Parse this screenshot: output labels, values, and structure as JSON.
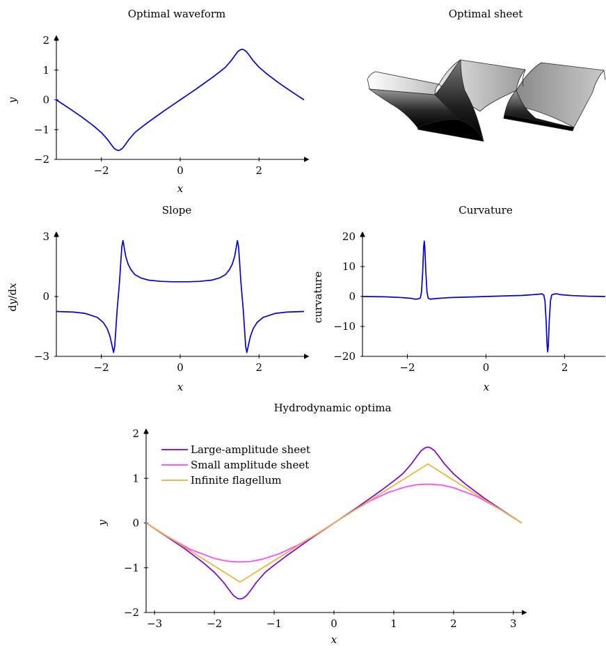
{
  "figure": {
    "sheet_title": "Optimal sheet"
  },
  "chart_data": [
    {
      "id": "waveform",
      "type": "line",
      "title": "Optimal waveform",
      "xlabel": "x",
      "ylabel": "y",
      "xlim": [
        -3.14159,
        3.14159
      ],
      "ylim": [
        -2,
        2
      ],
      "xticks": [
        -2,
        0,
        2
      ],
      "xtick_labels": [
        "−2",
        "0",
        "2"
      ],
      "yticks": [
        -2,
        -1,
        0,
        1,
        2
      ],
      "ytick_labels": [
        "−2",
        "−1",
        "0",
        "1",
        "2"
      ],
      "series": [
        {
          "color": "#0000dd",
          "x": [
            -3.14159,
            -2.8,
            -2.5,
            -2.2,
            -2.0,
            -1.85,
            -1.75,
            -1.68,
            -1.62,
            -1.57,
            -1.52,
            -1.46,
            -1.39,
            -1.3,
            -1.15,
            -1.0,
            -0.8,
            -0.6,
            -0.4,
            -0.2,
            0.0,
            0.2,
            0.4,
            0.6,
            0.8,
            1.0,
            1.15,
            1.3,
            1.39,
            1.46,
            1.52,
            1.57,
            1.62,
            1.68,
            1.75,
            1.85,
            2.0,
            2.2,
            2.5,
            2.8,
            3.14159
          ],
          "y": [
            0.0,
            -0.3,
            -0.57,
            -0.87,
            -1.1,
            -1.32,
            -1.5,
            -1.62,
            -1.68,
            -1.7,
            -1.68,
            -1.62,
            -1.5,
            -1.33,
            -1.1,
            -0.94,
            -0.74,
            -0.55,
            -0.36,
            -0.18,
            0.0,
            0.18,
            0.36,
            0.55,
            0.74,
            0.94,
            1.1,
            1.33,
            1.5,
            1.62,
            1.68,
            1.7,
            1.68,
            1.62,
            1.5,
            1.32,
            1.1,
            0.87,
            0.57,
            0.3,
            0.0
          ]
        }
      ]
    },
    {
      "id": "slope",
      "type": "line",
      "title": "Slope",
      "xlabel": "x",
      "ylabel": "dy/dx",
      "xlim": [
        -3.14159,
        3.14159
      ],
      "ylim": [
        -3,
        3
      ],
      "xticks": [
        -2,
        0,
        2
      ],
      "xtick_labels": [
        "−2",
        "0",
        "2"
      ],
      "yticks": [
        -3,
        0,
        3
      ],
      "ytick_labels": [
        "−3",
        "0",
        "3"
      ],
      "series": [
        {
          "color": "#0000dd",
          "x": [
            -3.14159,
            -2.7,
            -2.4,
            -2.1,
            -1.95,
            -1.85,
            -1.78,
            -1.73,
            -1.69,
            -1.66,
            -1.63,
            -1.6,
            -1.57,
            -1.54,
            -1.51,
            -1.48,
            -1.45,
            -1.42,
            -1.38,
            -1.32,
            -1.25,
            -1.15,
            -1.0,
            -0.8,
            -0.5,
            -0.2,
            0.0,
            0.2,
            0.5,
            0.8,
            1.0,
            1.15,
            1.25,
            1.32,
            1.38,
            1.42,
            1.45,
            1.48,
            1.51,
            1.54,
            1.57,
            1.6,
            1.63,
            1.66,
            1.69,
            1.73,
            1.78,
            1.85,
            1.95,
            2.1,
            2.4,
            2.7,
            3.14159
          ],
          "y": [
            -0.75,
            -0.78,
            -0.85,
            -1.05,
            -1.3,
            -1.62,
            -2.0,
            -2.45,
            -2.8,
            -2.5,
            -1.6,
            -0.7,
            0.0,
            0.7,
            1.6,
            2.5,
            2.8,
            2.45,
            2.0,
            1.62,
            1.35,
            1.1,
            0.93,
            0.82,
            0.76,
            0.74,
            0.74,
            0.74,
            0.76,
            0.82,
            0.93,
            1.1,
            1.35,
            1.62,
            2.0,
            2.45,
            2.8,
            2.5,
            1.6,
            0.7,
            0.0,
            -0.7,
            -1.6,
            -2.5,
            -2.8,
            -2.45,
            -2.0,
            -1.62,
            -1.3,
            -1.05,
            -0.85,
            -0.78,
            -0.75
          ]
        }
      ]
    },
    {
      "id": "curvature",
      "type": "line",
      "title": "Curvature",
      "xlabel": "x",
      "ylabel": "curvature",
      "xlim": [
        -3.14159,
        3.14159
      ],
      "ylim": [
        -20,
        20
      ],
      "xticks": [
        -2,
        0,
        2
      ],
      "xtick_labels": [
        "−2",
        "0",
        "2"
      ],
      "yticks": [
        -20,
        -10,
        0,
        10,
        20
      ],
      "ytick_labels": [
        "−20",
        "−10",
        "0",
        "10",
        "20"
      ],
      "series": [
        {
          "color": "#0000dd",
          "x": [
            -3.14159,
            -2.6,
            -2.2,
            -1.9,
            -1.8,
            -1.72,
            -1.67,
            -1.64,
            -1.61,
            -1.585,
            -1.57,
            -1.555,
            -1.53,
            -1.5,
            -1.47,
            -1.42,
            -1.35,
            -1.2,
            -0.9,
            -0.5,
            0.0,
            0.5,
            0.9,
            1.2,
            1.35,
            1.42,
            1.47,
            1.5,
            1.53,
            1.555,
            1.57,
            1.585,
            1.61,
            1.64,
            1.67,
            1.72,
            1.8,
            1.9,
            2.2,
            2.6,
            3.14159
          ],
          "y": [
            0.0,
            -0.1,
            -0.3,
            -0.6,
            -0.9,
            -0.8,
            -0.5,
            1.5,
            8.0,
            16.5,
            18.5,
            16.5,
            8.0,
            1.5,
            -0.5,
            -0.9,
            -0.8,
            -0.6,
            -0.35,
            -0.2,
            0.0,
            0.2,
            0.35,
            0.6,
            0.8,
            0.9,
            0.5,
            -1.5,
            -8.0,
            -16.5,
            -18.5,
            -16.5,
            -8.0,
            -1.5,
            0.5,
            0.8,
            0.9,
            0.6,
            0.3,
            0.1,
            0.0
          ]
        }
      ]
    },
    {
      "id": "optima",
      "type": "line",
      "title": "Hydrodynamic optima",
      "xlabel": "x",
      "ylabel": "y",
      "xlim": [
        -3.14159,
        3.14159
      ],
      "ylim": [
        -2,
        2
      ],
      "xticks": [
        -3,
        -2,
        -1,
        0,
        1,
        2,
        3
      ],
      "xtick_labels": [
        "−3",
        "−2",
        "−1",
        "0",
        "1",
        "2",
        "3"
      ],
      "yticks": [
        -2,
        -1,
        0,
        1,
        2
      ],
      "ytick_labels": [
        "−2",
        "−1",
        "0",
        "1",
        "2"
      ],
      "legend": "top-left",
      "series": [
        {
          "name": "Large-amplitude sheet",
          "color": "#7a00d9",
          "x": [
            -3.14159,
            -2.8,
            -2.5,
            -2.2,
            -2.0,
            -1.85,
            -1.75,
            -1.68,
            -1.62,
            -1.57,
            -1.52,
            -1.46,
            -1.39,
            -1.3,
            -1.15,
            -1.0,
            -0.8,
            -0.6,
            -0.4,
            -0.2,
            0.0,
            0.2,
            0.4,
            0.6,
            0.8,
            1.0,
            1.15,
            1.3,
            1.39,
            1.46,
            1.52,
            1.57,
            1.62,
            1.68,
            1.75,
            1.85,
            2.0,
            2.2,
            2.5,
            2.8,
            3.14159
          ],
          "y": [
            0.0,
            -0.3,
            -0.57,
            -0.87,
            -1.1,
            -1.32,
            -1.5,
            -1.62,
            -1.68,
            -1.7,
            -1.68,
            -1.62,
            -1.5,
            -1.33,
            -1.1,
            -0.94,
            -0.74,
            -0.55,
            -0.36,
            -0.18,
            0.0,
            0.18,
            0.36,
            0.55,
            0.74,
            0.94,
            1.1,
            1.33,
            1.5,
            1.62,
            1.68,
            1.7,
            1.68,
            1.62,
            1.5,
            1.32,
            1.1,
            0.87,
            0.57,
            0.3,
            0.0
          ]
        },
        {
          "name": "Small amplitude sheet",
          "color": "#ff44ff",
          "x": [
            -3.14159,
            -2.8,
            -2.4,
            -2.0,
            -1.8,
            -1.6,
            -1.4,
            -1.2,
            -0.9,
            -0.6,
            -0.3,
            0.0,
            0.3,
            0.6,
            0.9,
            1.2,
            1.4,
            1.6,
            1.8,
            2.0,
            2.4,
            2.8,
            3.14159
          ],
          "y": [
            0.0,
            -0.29,
            -0.59,
            -0.79,
            -0.85,
            -0.87,
            -0.86,
            -0.81,
            -0.68,
            -0.49,
            -0.26,
            0.0,
            0.26,
            0.49,
            0.68,
            0.81,
            0.86,
            0.87,
            0.85,
            0.79,
            0.59,
            0.29,
            0.0
          ]
        },
        {
          "name": "Infinite flagellum",
          "color": "#f0b030",
          "x": [
            -3.14159,
            -1.5708,
            1.5708,
            3.14159
          ],
          "y": [
            0.0,
            -1.32,
            1.32,
            0.0
          ]
        }
      ]
    }
  ]
}
